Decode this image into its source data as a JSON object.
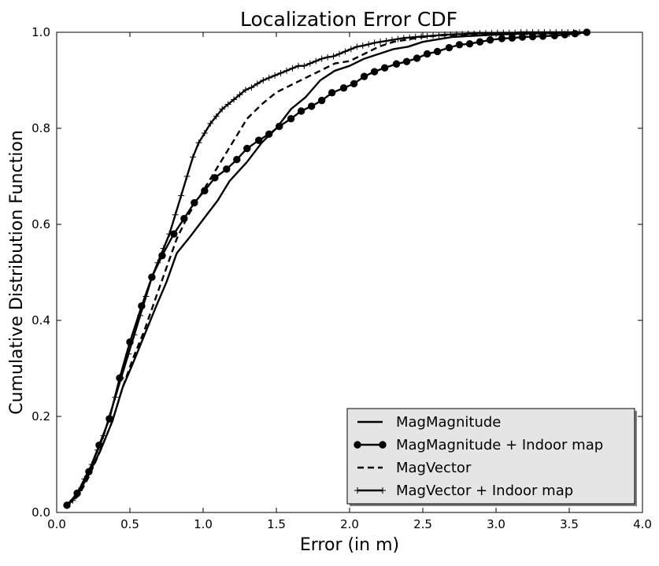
{
  "chart_data": {
    "type": "line",
    "title": "Localization Error CDF",
    "xlabel": "Error (in m)",
    "ylabel": "Cumulative Distribution Function",
    "xlim": [
      0.0,
      4.0
    ],
    "ylim": [
      0.0,
      1.0
    ],
    "xticks": [
      "0.0",
      "0.5",
      "1.0",
      "1.5",
      "2.0",
      "2.5",
      "3.0",
      "3.5",
      "4.0"
    ],
    "yticks": [
      "0.0",
      "0.2",
      "0.4",
      "0.6",
      "0.8",
      "1.0"
    ],
    "grid": false,
    "legend_position": "lower-right",
    "colors": {
      "line": "#000000",
      "legend_bg": "#e5e5e5",
      "background": "#ffffff"
    },
    "series": [
      {
        "name": "MagMagnitude",
        "style": "solid",
        "marker": "none",
        "x": [
          0.07,
          0.15,
          0.22,
          0.3,
          0.38,
          0.45,
          0.52,
          0.6,
          0.68,
          0.75,
          0.82,
          0.9,
          1.0,
          1.1,
          1.18,
          1.3,
          1.4,
          1.5,
          1.6,
          1.7,
          1.8,
          1.9,
          2.0,
          2.1,
          2.2,
          2.3,
          2.4,
          2.5,
          2.6,
          2.7,
          2.8,
          3.0,
          3.2,
          3.4,
          3.62
        ],
        "y": [
          0.015,
          0.04,
          0.08,
          0.13,
          0.19,
          0.26,
          0.31,
          0.37,
          0.43,
          0.48,
          0.54,
          0.57,
          0.61,
          0.65,
          0.69,
          0.73,
          0.77,
          0.8,
          0.84,
          0.865,
          0.9,
          0.92,
          0.93,
          0.945,
          0.955,
          0.965,
          0.97,
          0.98,
          0.985,
          0.99,
          0.992,
          0.995,
          0.997,
          0.998,
          1.0
        ]
      },
      {
        "name": "MagMagnitude + Indoor map",
        "style": "solid",
        "marker": "circle",
        "x": [
          0.07,
          0.14,
          0.22,
          0.29,
          0.36,
          0.43,
          0.5,
          0.58,
          0.65,
          0.72,
          0.8,
          0.87,
          0.94,
          1.01,
          1.08,
          1.16,
          1.23,
          1.3,
          1.38,
          1.45,
          1.52,
          1.6,
          1.67,
          1.74,
          1.81,
          1.88,
          1.96,
          2.03,
          2.1,
          2.17,
          2.24,
          2.32,
          2.39,
          2.46,
          2.53,
          2.6,
          2.68,
          2.75,
          2.82,
          2.89,
          2.96,
          3.04,
          3.11,
          3.18,
          3.25,
          3.32,
          3.4,
          3.47,
          3.54,
          3.62
        ],
        "y": [
          0.015,
          0.04,
          0.085,
          0.14,
          0.195,
          0.28,
          0.355,
          0.43,
          0.49,
          0.535,
          0.58,
          0.612,
          0.645,
          0.67,
          0.697,
          0.715,
          0.735,
          0.758,
          0.775,
          0.788,
          0.804,
          0.82,
          0.836,
          0.846,
          0.858,
          0.874,
          0.884,
          0.893,
          0.908,
          0.918,
          0.926,
          0.934,
          0.939,
          0.946,
          0.955,
          0.96,
          0.968,
          0.974,
          0.976,
          0.98,
          0.984,
          0.987,
          0.988,
          0.99,
          0.991,
          0.992,
          0.993,
          0.995,
          0.997,
          1.0
        ]
      },
      {
        "name": "MagVector",
        "style": "dashed",
        "marker": "none",
        "x": [
          0.07,
          0.15,
          0.22,
          0.3,
          0.38,
          0.45,
          0.52,
          0.6,
          0.68,
          0.75,
          0.82,
          0.9,
          1.0,
          1.1,
          1.2,
          1.3,
          1.4,
          1.5,
          1.6,
          1.7,
          1.8,
          1.9,
          2.0,
          2.1,
          2.2,
          2.3,
          2.4,
          2.5,
          2.6,
          2.8,
          3.0,
          3.2,
          3.4,
          3.62
        ],
        "y": [
          0.015,
          0.035,
          0.075,
          0.13,
          0.19,
          0.26,
          0.32,
          0.38,
          0.45,
          0.51,
          0.57,
          0.62,
          0.67,
          0.72,
          0.77,
          0.82,
          0.85,
          0.875,
          0.89,
          0.905,
          0.92,
          0.935,
          0.94,
          0.955,
          0.97,
          0.98,
          0.985,
          0.99,
          0.993,
          0.995,
          0.997,
          0.998,
          0.999,
          1.0
        ]
      },
      {
        "name": "MagVector + Indoor map",
        "style": "solid",
        "marker": "plus",
        "x": [
          0.07,
          0.11,
          0.15,
          0.19,
          0.24,
          0.28,
          0.32,
          0.36,
          0.4,
          0.44,
          0.49,
          0.53,
          0.57,
          0.61,
          0.65,
          0.69,
          0.73,
          0.77,
          0.81,
          0.85,
          0.89,
          0.93,
          0.97,
          1.01,
          1.05,
          1.09,
          1.13,
          1.17,
          1.21,
          1.25,
          1.29,
          1.33,
          1.37,
          1.41,
          1.45,
          1.49,
          1.53,
          1.57,
          1.61,
          1.65,
          1.69,
          1.73,
          1.77,
          1.81,
          1.85,
          1.89,
          1.93,
          1.97,
          2.01,
          2.05,
          2.09,
          2.13,
          2.17,
          2.21,
          2.25,
          2.29,
          2.33,
          2.37,
          2.41,
          2.45,
          2.49,
          2.53,
          2.57,
          2.61,
          2.65,
          2.69,
          2.73,
          2.77,
          2.81,
          2.85,
          2.89,
          2.93,
          2.97,
          3.01,
          3.05,
          3.09,
          3.13,
          3.17,
          3.21,
          3.25,
          3.29,
          3.33,
          3.37,
          3.41,
          3.45,
          3.49,
          3.53,
          3.57,
          3.62
        ],
        "y": [
          0.015,
          0.025,
          0.045,
          0.07,
          0.1,
          0.13,
          0.16,
          0.2,
          0.24,
          0.28,
          0.33,
          0.37,
          0.41,
          0.45,
          0.49,
          0.52,
          0.55,
          0.58,
          0.62,
          0.66,
          0.7,
          0.74,
          0.77,
          0.79,
          0.81,
          0.825,
          0.84,
          0.85,
          0.86,
          0.87,
          0.88,
          0.885,
          0.893,
          0.9,
          0.905,
          0.91,
          0.915,
          0.92,
          0.925,
          0.93,
          0.93,
          0.935,
          0.94,
          0.945,
          0.948,
          0.95,
          0.955,
          0.96,
          0.965,
          0.97,
          0.972,
          0.975,
          0.978,
          0.98,
          0.982,
          0.984,
          0.986,
          0.988,
          0.989,
          0.99,
          0.991,
          0.992,
          0.993,
          0.994,
          0.995,
          0.995,
          0.996,
          0.996,
          0.997,
          0.997,
          0.998,
          0.998,
          0.998,
          0.999,
          0.999,
          0.999,
          0.999,
          1.0,
          1.0,
          1.0,
          1.0,
          1.0,
          1.0,
          1.0,
          1.0,
          1.0,
          1.0,
          1.0,
          1.0
        ]
      }
    ]
  }
}
